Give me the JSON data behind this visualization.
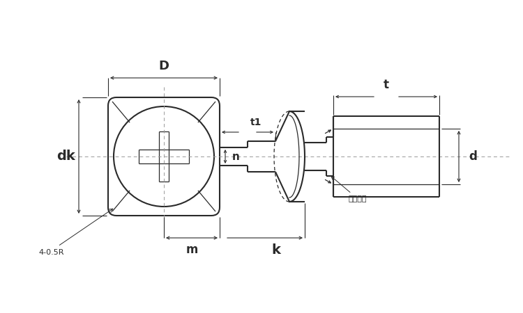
{
  "bg_color": "#ffffff",
  "line_color": "#2a2a2a",
  "fig_width": 7.5,
  "fig_height": 4.5,
  "labels": {
    "D": "D",
    "dk": "dk",
    "t1": "t1",
    "t": "t",
    "n": "n",
    "m": "m",
    "k": "k",
    "d": "d",
    "corner": "4-0.5R",
    "spac": "スパック"
  }
}
